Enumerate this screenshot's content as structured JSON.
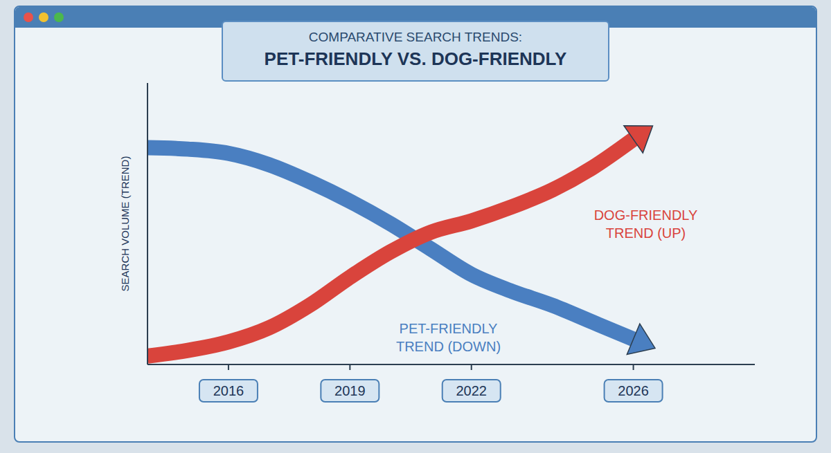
{
  "chart_data": {
    "type": "line",
    "title": "COMPARATIVE SEARCH TRENDS: PET-FRIENDLY VS. DOG-FRIENDLY",
    "ylabel": "SEARCH VOLUME (TREND)",
    "x": [
      2014,
      2015,
      2016,
      2017,
      2018,
      2019,
      2020,
      2021,
      2022,
      2023,
      2024,
      2025,
      2026
    ],
    "series": [
      {
        "name": "PET-FRIENDLY TREND (DOWN)",
        "color": "#4a7fc1",
        "values": [
          77,
          76.5,
          75,
          71,
          65,
          58,
          50,
          41,
          32,
          26,
          21,
          15,
          9
        ]
      },
      {
        "name": "DOG-FRIENDLY TREND (UP)",
        "color": "#d9443c",
        "values": [
          3,
          5,
          8,
          13,
          21,
          31,
          40,
          47,
          51,
          56,
          62,
          70,
          80
        ]
      }
    ],
    "xlim": [
      2014,
      2029
    ],
    "xticks": [
      2016,
      2019,
      2022,
      2026
    ],
    "ylim": [
      0,
      100
    ],
    "tick_labels": "x",
    "grid": false,
    "marker": "arrow"
  }
}
